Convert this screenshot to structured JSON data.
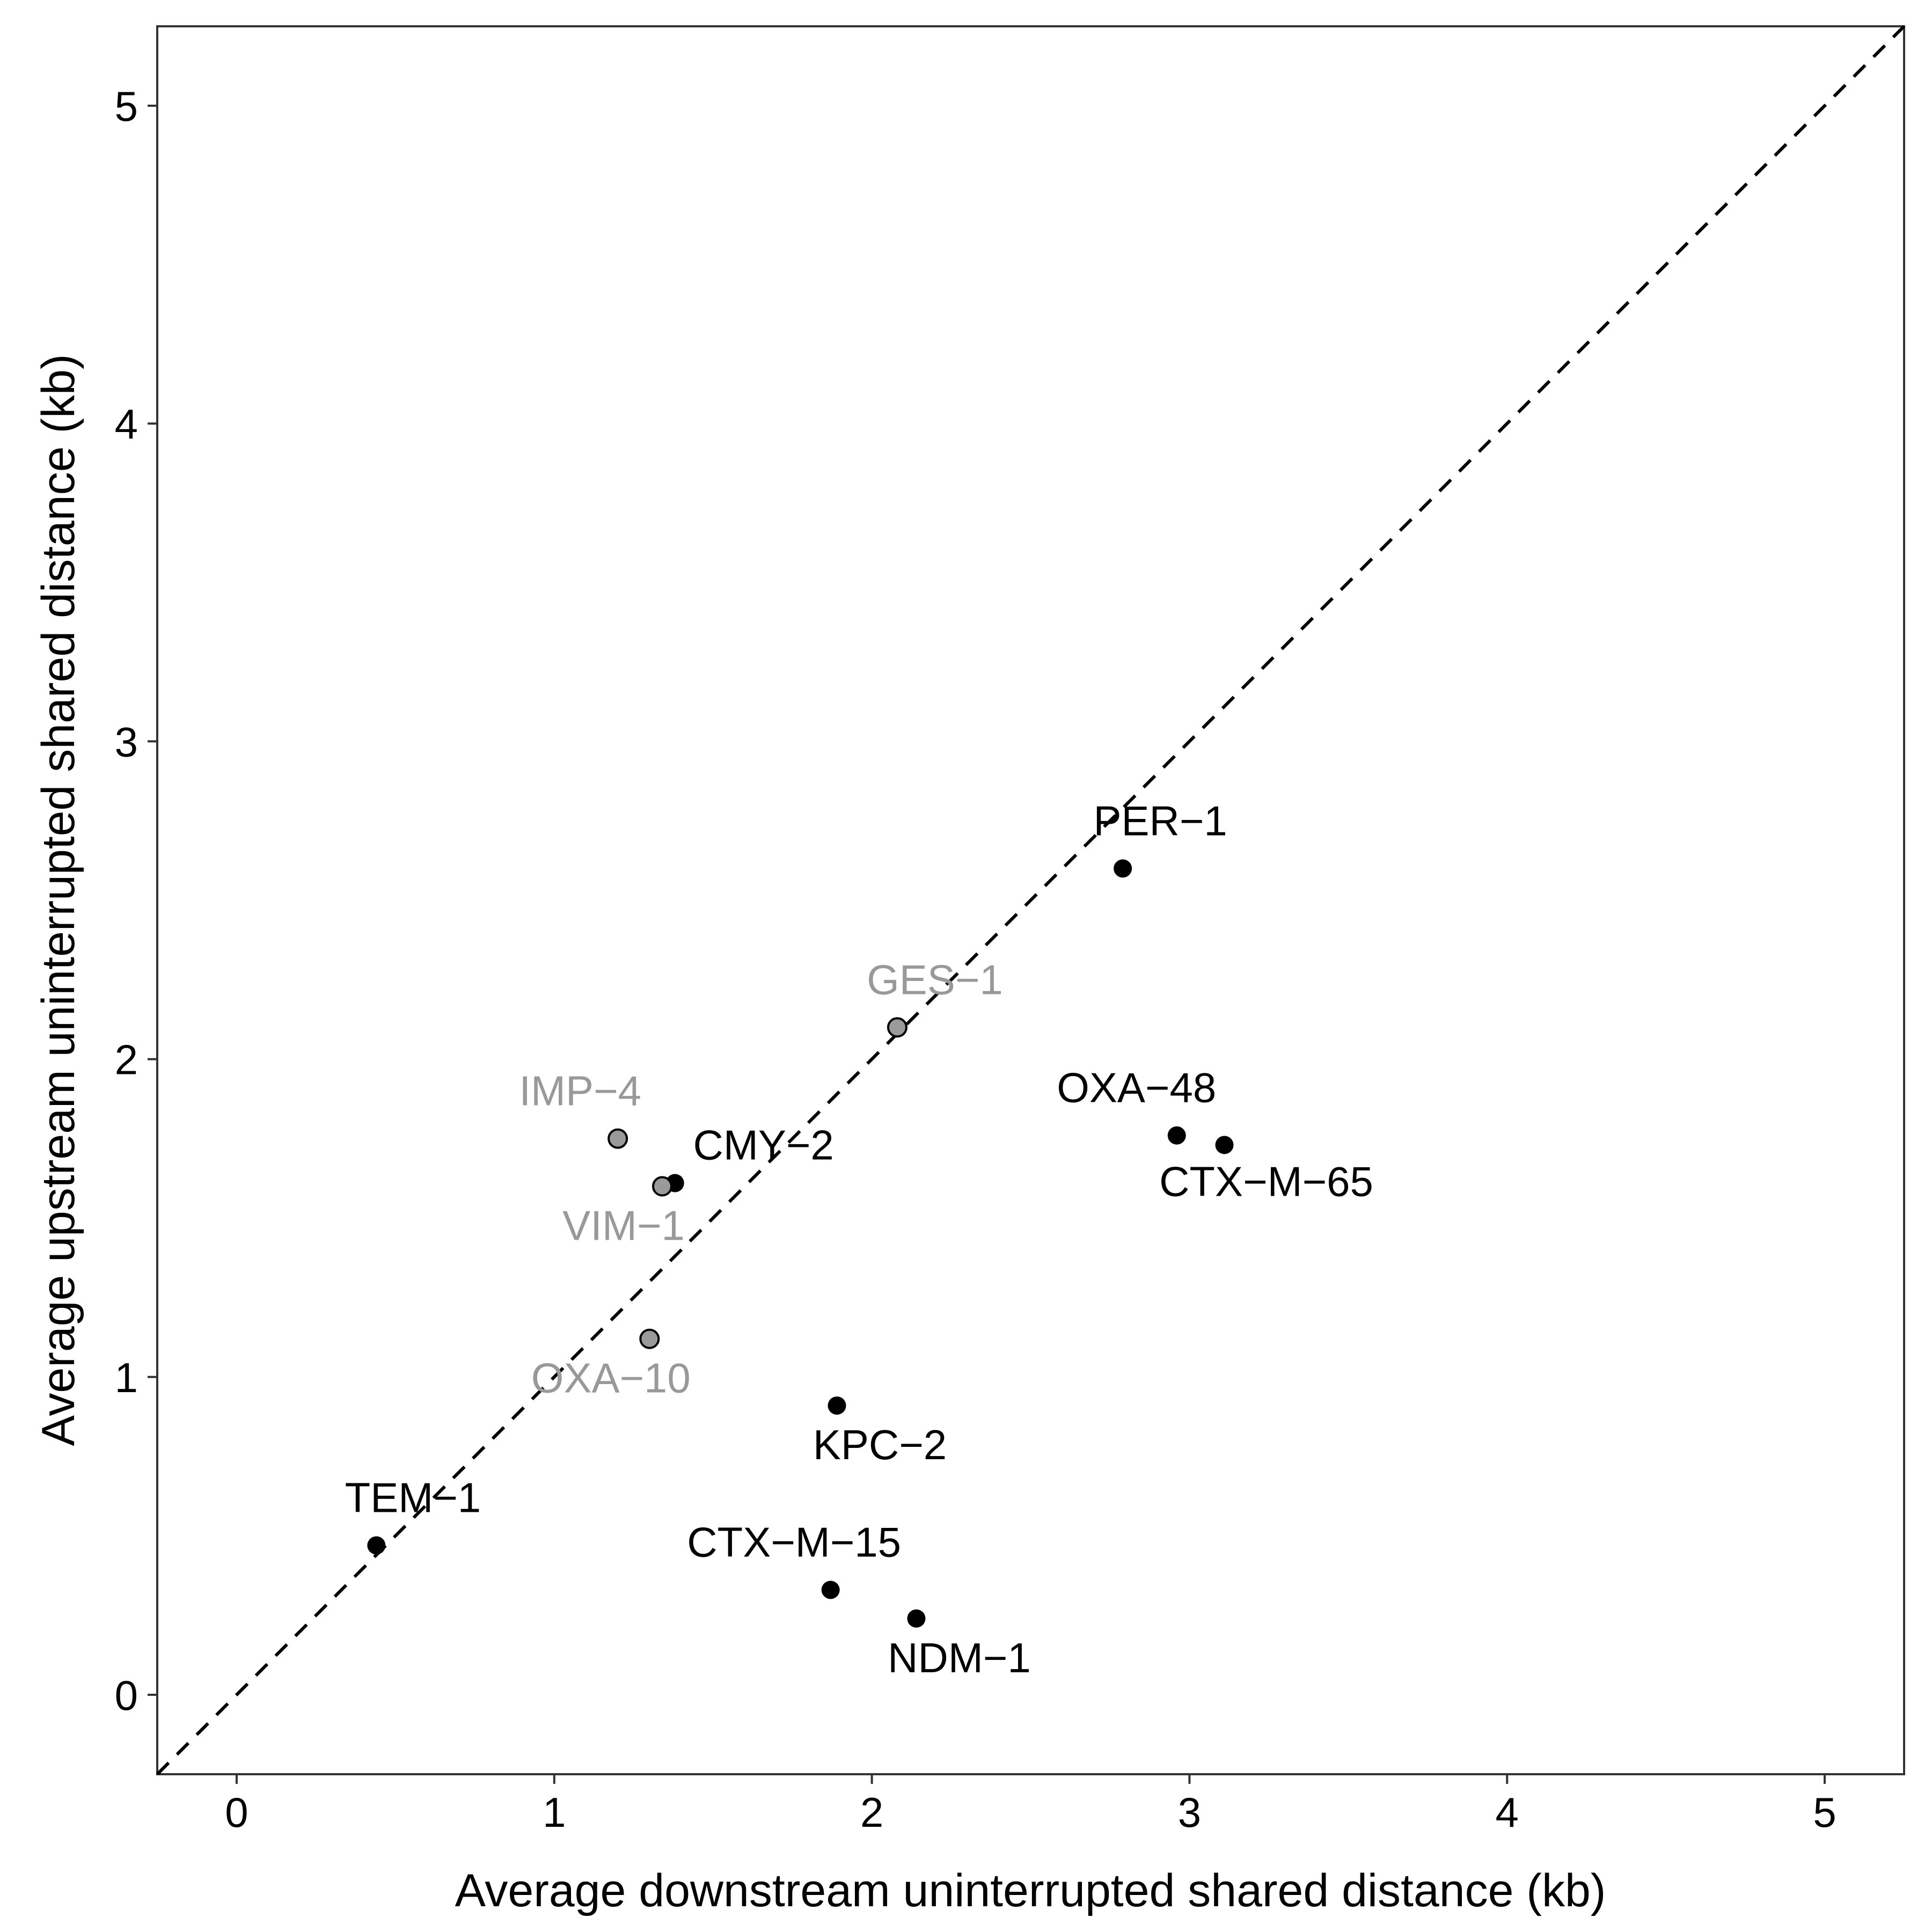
{
  "chart_data": {
    "type": "scatter",
    "title": "",
    "xlabel": "Average downstream uninterrupted shared distance (kb)",
    "ylabel": "Average upstream uninterrupted shared distance (kb)",
    "xlim": [
      -0.25,
      5.25
    ],
    "ylim": [
      -0.25,
      5.25
    ],
    "x_ticks": [
      "0",
      "1",
      "2",
      "3",
      "4",
      "5"
    ],
    "y_ticks": [
      "0",
      "1",
      "2",
      "3",
      "4",
      "5"
    ],
    "grid": false,
    "reference_line": "y = x",
    "colors": {
      "black_group": "#000000",
      "grey_fill": "#9a9a9a",
      "grey_label": "#999999"
    },
    "points": [
      {
        "label": "PER-1",
        "x": 2.79,
        "y": 2.6,
        "group": "black"
      },
      {
        "label": "GES-1",
        "x": 2.08,
        "y": 2.1,
        "group": "grey"
      },
      {
        "label": "OXA-48",
        "x": 2.96,
        "y": 1.76,
        "group": "black"
      },
      {
        "label": "CTX-M-65",
        "x": 3.11,
        "y": 1.73,
        "group": "black"
      },
      {
        "label": "IMP-4",
        "x": 1.2,
        "y": 1.75,
        "group": "grey"
      },
      {
        "label": "CMY-2",
        "x": 1.38,
        "y": 1.61,
        "group": "black"
      },
      {
        "label": "VIM-1",
        "x": 1.34,
        "y": 1.6,
        "group": "grey"
      },
      {
        "label": "OXA-10",
        "x": 1.3,
        "y": 1.12,
        "group": "grey"
      },
      {
        "label": "KPC-2",
        "x": 1.89,
        "y": 0.91,
        "group": "black"
      },
      {
        "label": "TEM-1",
        "x": 0.44,
        "y": 0.47,
        "group": "black"
      },
      {
        "label": "CTX-M-15",
        "x": 1.87,
        "y": 0.33,
        "group": "black"
      },
      {
        "label": "NDM-1",
        "x": 2.14,
        "y": 0.24,
        "group": "black"
      }
    ]
  }
}
